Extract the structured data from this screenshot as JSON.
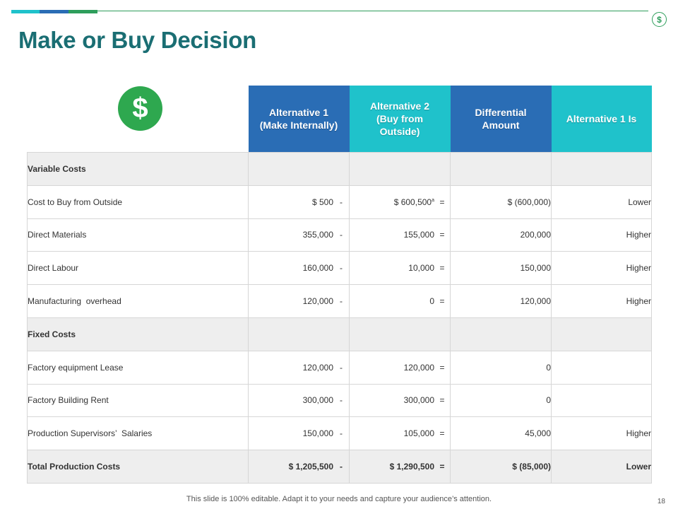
{
  "slide": {
    "title": "Make or Buy Decision",
    "footer": "This slide is 100% editable. Adapt it to your needs and capture your audience’s attention.",
    "page_number": "18",
    "top_icon": "$",
    "hero_icon": "$"
  },
  "colors": {
    "title": "#1a6e73",
    "header_blue": "#2a6db5",
    "header_cyan": "#1fc2cb",
    "icon_green": "#2ea84f",
    "accent_teal": "#1fc2cb",
    "accent_blue": "#2a6db5",
    "accent_green": "#2e9e5b"
  },
  "table": {
    "headers": {
      "alt1": "Alternative 1 (Make Internally)",
      "alt2": "Alternative 2 (Buy from Outside)",
      "diff": "Differential Amount",
      "alt1is": "Alternative 1 Is"
    },
    "rows": [
      {
        "label": "Variable Costs",
        "alt1": "",
        "op1": "",
        "alt2": "",
        "op2": "",
        "diff": "",
        "is": ""
      },
      {
        "label": "Cost to Buy from Outside",
        "alt1": "$ 500",
        "op1": "-",
        "alt2": "$ 600,500",
        "op2": "=",
        "diff": "$ (600,000)",
        "is": "Lower"
      },
      {
        "label": "Direct Materials",
        "alt1": "355,000",
        "op1": "-",
        "alt2": "155,000",
        "op2": "=",
        "diff": "200,000",
        "is": "Higher"
      },
      {
        "label": "Direct Labour",
        "alt1": "160,000",
        "op1": "-",
        "alt2": "10,000",
        "op2": "=",
        "diff": "150,000",
        "is": "Higher"
      },
      {
        "label": "Manufacturing  overhead",
        "alt1": "120,000",
        "op1": "-",
        "alt2": "0",
        "op2": "=",
        "diff": "120,000",
        "is": "Higher"
      },
      {
        "label": "Fixed Costs",
        "alt1": "",
        "op1": "",
        "alt2": "",
        "op2": "",
        "diff": "",
        "is": ""
      },
      {
        "label": "Factory equipment Lease",
        "alt1": "120,000",
        "op1": "-",
        "alt2": "120,000",
        "op2": "=",
        "diff": "0",
        "is": ""
      },
      {
        "label": "Factory Building Rent",
        "alt1": "300,000",
        "op1": "-",
        "alt2": "300,000",
        "op2": "=",
        "diff": "0",
        "is": ""
      },
      {
        "label": "Production Supervisors’  Salaries",
        "alt1": "150,000",
        "op1": "-",
        "alt2": "105,000",
        "op2": "=",
        "diff": "45,000",
        "is": "Higher"
      },
      {
        "label": "Total Production Costs",
        "alt1": "$ 1,205,500",
        "op1": "-",
        "alt2": "$ 1,290,500",
        "op2": "=",
        "diff": "$ (85,000)",
        "is": "Lower"
      }
    ],
    "footnote_mark": "a"
  }
}
